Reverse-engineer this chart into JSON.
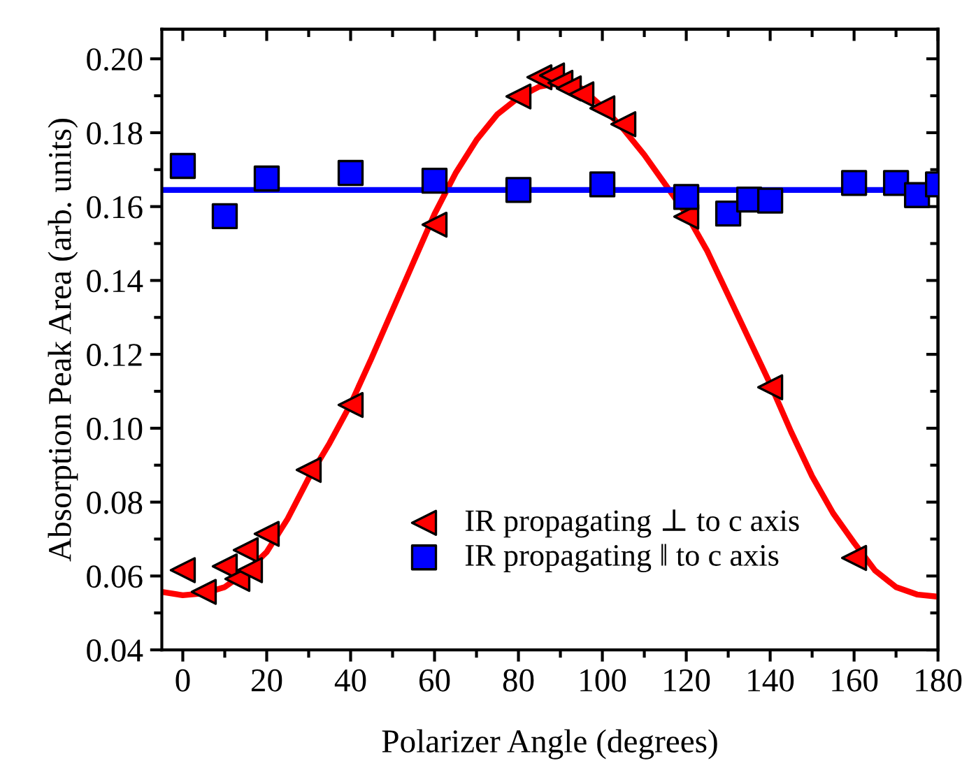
{
  "chart_data": {
    "type": "scatter",
    "xlabel": "Polarizer Angle (degrees)",
    "ylabel": "Absorption Peak Area (arb. units)",
    "xlim": [
      -5,
      180
    ],
    "xticks": [
      0,
      20,
      40,
      60,
      80,
      100,
      120,
      140,
      160,
      180
    ],
    "ylim": [
      0.04,
      0.208
    ],
    "yticks": [
      {
        "value": 0.04,
        "label": "0.04"
      },
      {
        "value": 0.06,
        "label": "0.06"
      },
      {
        "value": 0.08,
        "label": "0.08"
      },
      {
        "value": 0.1,
        "label": "0.10"
      },
      {
        "value": 0.12,
        "label": "0.12"
      },
      {
        "value": 0.14,
        "label": "0.14"
      },
      {
        "value": 0.16,
        "label": "0.16"
      },
      {
        "value": 0.18,
        "label": "0.18"
      },
      {
        "value": 0.2,
        "label": "0.20"
      }
    ],
    "grid": false,
    "legend": "bottom",
    "series": [
      {
        "type": "line",
        "color": "#ff0000",
        "marker": "none",
        "x": [
          -5,
          0,
          5,
          10,
          15,
          20,
          25,
          30,
          35,
          40,
          45,
          50,
          55,
          60,
          65,
          70,
          75,
          80,
          85,
          90,
          95,
          100,
          105,
          110,
          115,
          120,
          125,
          130,
          135,
          140,
          145,
          150,
          155,
          160,
          165,
          170,
          175,
          180
        ],
        "values": [
          0.0557,
          0.0548,
          0.0553,
          0.057,
          0.061,
          0.0665,
          0.0755,
          0.0865,
          0.096,
          0.1065,
          0.119,
          0.132,
          0.145,
          0.158,
          0.169,
          0.178,
          0.185,
          0.1895,
          0.1925,
          0.1935,
          0.192,
          0.187,
          0.181,
          0.174,
          0.166,
          0.158,
          0.148,
          0.136,
          0.124,
          0.112,
          0.099,
          0.087,
          0.077,
          0.069,
          0.0615,
          0.057,
          0.055,
          0.0544
        ]
      },
      {
        "type": "line",
        "color": "#0000ff",
        "marker": "none",
        "x": [
          -5,
          180
        ],
        "values": [
          0.1645,
          0.1645
        ]
      },
      {
        "name": "IR propagating ⊥ to c axis",
        "color": "#ff0000",
        "marker": "triangle",
        "x": [
          0,
          5,
          10,
          13,
          15,
          16,
          20,
          30,
          40,
          60,
          80,
          85,
          88,
          90,
          92,
          95,
          100,
          105,
          120,
          140,
          160
        ],
        "values": [
          0.0616,
          0.0557,
          0.0626,
          0.0592,
          0.067,
          0.0616,
          0.0714,
          0.0887,
          0.1063,
          0.1551,
          0.1898,
          0.195,
          0.1955,
          0.1935,
          0.192,
          0.1904,
          0.1866,
          0.1823,
          0.1573,
          0.1111,
          0.0649
        ]
      },
      {
        "name": "IR propagating ‖ to c axis",
        "color": "#0000ff",
        "marker": "square",
        "x": [
          0,
          10,
          20,
          40,
          60,
          80,
          100,
          120,
          130,
          135,
          140,
          160,
          170,
          175,
          180
        ],
        "values": [
          0.171,
          0.1574,
          0.1676,
          0.1691,
          0.167,
          0.1645,
          0.166,
          0.1626,
          0.1581,
          0.1619,
          0.1616,
          0.1664,
          0.1664,
          0.1631,
          0.166
        ]
      }
    ]
  }
}
